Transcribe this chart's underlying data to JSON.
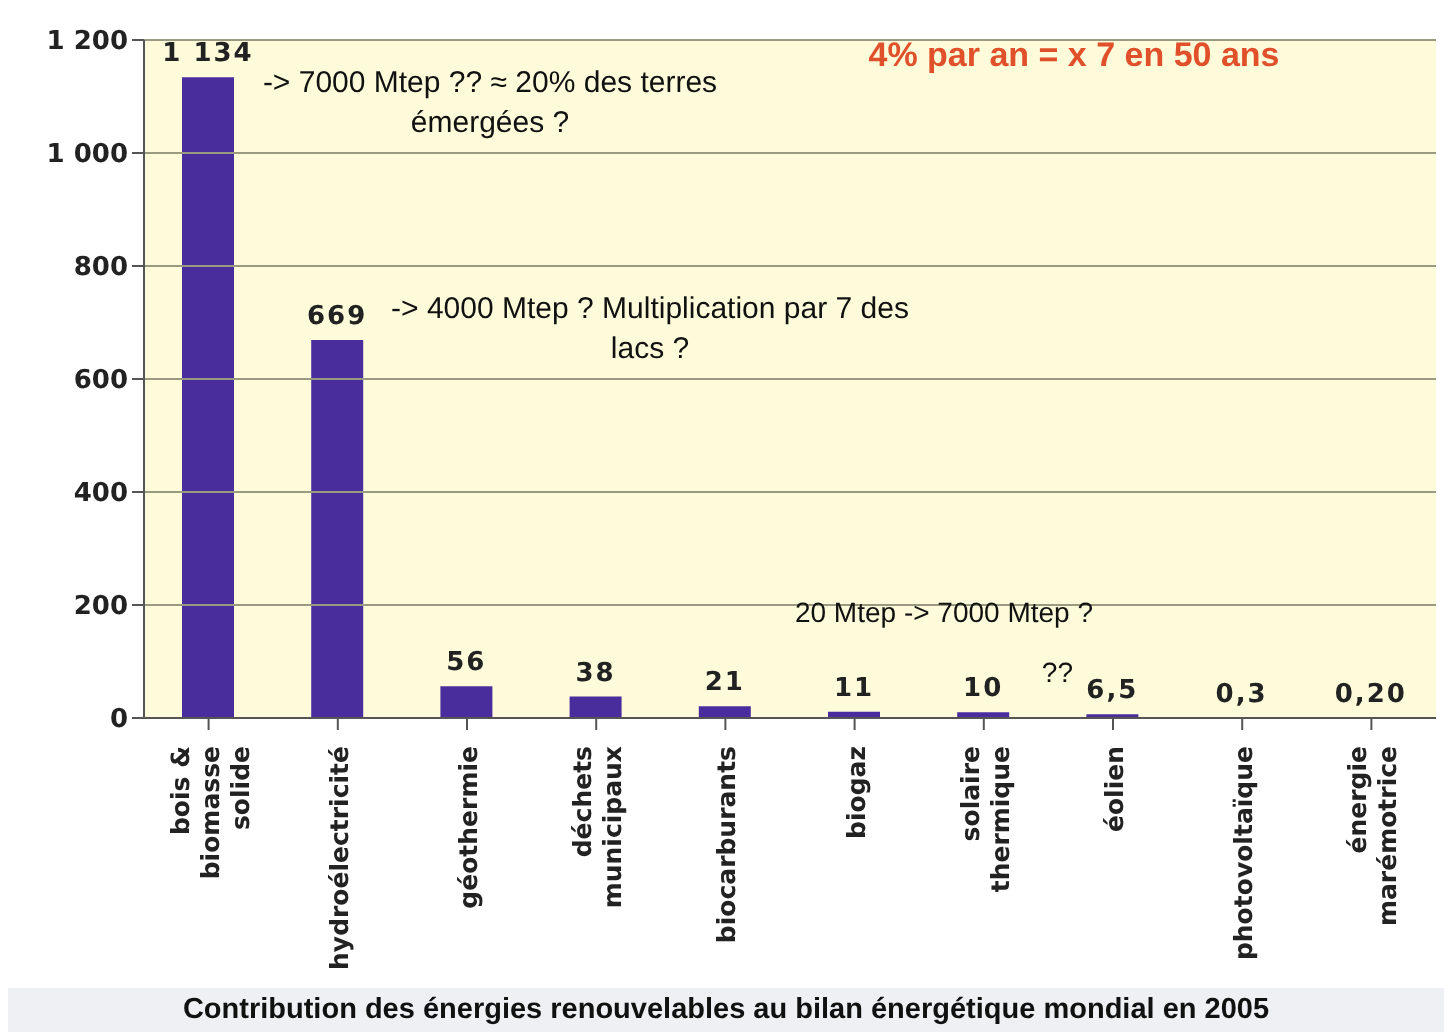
{
  "chart_data": {
    "type": "bar",
    "title": "Contribution des énergies renouvelables au bilan énergétique mondial en 2005",
    "categories": [
      "bois & biomasse solide",
      "hydroélectricité",
      "géothermie",
      "déchets municipaux",
      "biocarburants",
      "biogaz",
      "solaire thermique",
      "éolien",
      "photovoltaïque",
      "énergie marémotrice"
    ],
    "values": [
      1134,
      669,
      56,
      38,
      21,
      11,
      10,
      6.5,
      0.3,
      0.2
    ],
    "value_labels": [
      "1 134",
      "669",
      "56",
      "38",
      "21",
      "11",
      "10",
      "6,5",
      "0,3",
      "0,20"
    ],
    "color": "#4a2d9c",
    "ylim": [
      0,
      1200
    ],
    "yticks": [
      0,
      200,
      400,
      600,
      800,
      {
        "value": 1000,
        "label": "1 000"
      },
      {
        "value": 1200,
        "label": "1 200"
      }
    ],
    "grid": "y",
    "annotations": [
      "-> 7000 Mtep ?? ≈ 20% des terres émergées ?",
      "-> 4000 Mtep ? Multiplication par 7 des lacs ?",
      "4% par an = x 7 en 50 ans",
      "20 Mtep -> 7000 Mtep ?",
      {
        "text": "??",
        "x": "éolien",
        "y": 6.5
      }
    ]
  }
}
